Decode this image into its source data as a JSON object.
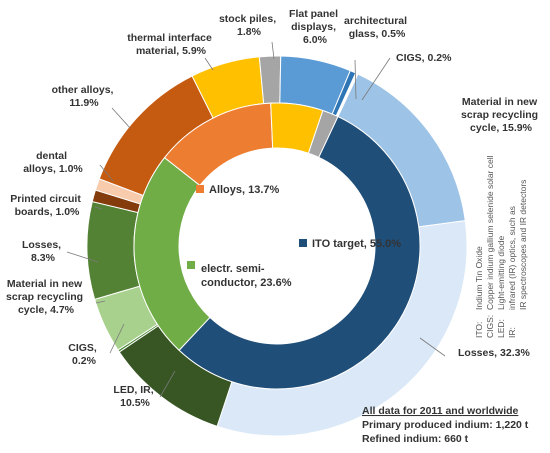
{
  "chart_data": {
    "type": "pie",
    "subtype": "nested-donut",
    "outer_ring": {
      "slices": [
        {
          "label": "Material in new scrap recycling cycle, 15.9%",
          "value": 15.9,
          "color": "#9dc3e6"
        },
        {
          "label": "Losses, 32.3%",
          "value": 32.3,
          "color": "#dae8f7"
        },
        {
          "label": "LED, IR, 10.5%",
          "value": 10.5,
          "color": "#375623"
        },
        {
          "label": "CIGS, 0.2%",
          "value": 0.2,
          "color": "#4e8a3a"
        },
        {
          "label": "Material in new scrap recycling cycle, 4.7%",
          "value": 4.7,
          "color": "#a9d18e"
        },
        {
          "label": "Losses, 8.3%",
          "value": 8.3,
          "color": "#548235"
        },
        {
          "label": "Printed circuit boards, 1.0%",
          "value": 1.0,
          "color": "#843c0c"
        },
        {
          "label": "dental alloys, 1.0%",
          "value": 1.0,
          "color": "#f8cbad"
        },
        {
          "label": "other alloys, 11.9%",
          "value": 11.9,
          "color": "#c55a11"
        },
        {
          "label": "thermal interface material, 5.9%",
          "value": 5.9,
          "color": "#ffc000"
        },
        {
          "label": "stock piles, 1.8%",
          "value": 1.8,
          "color": "#a5a5a5"
        },
        {
          "label": "Flat panel displays, 6.0%",
          "value": 6.0,
          "color": "#5b9bd5"
        },
        {
          "label": "architectural glass, 0.5%",
          "value": 0.5,
          "color": "#2e75b6"
        },
        {
          "label": "CIGS, 0.2%",
          "value": 0.2,
          "color": "#ffffff"
        }
      ]
    },
    "inner_ring": {
      "slices": [
        {
          "label": "ITO target, 55.0%",
          "value": 55.0,
          "color": "#1f4e79"
        },
        {
          "label": "electr. semi-conductor, 23.6%",
          "value": 23.6,
          "color": "#70ad47"
        },
        {
          "label": "Alloys, 13.7%",
          "value": 13.7,
          "color": "#ed7d31"
        },
        {
          "label": "",
          "value": 5.9,
          "color": "#ffc000"
        },
        {
          "label": "",
          "value": 1.8,
          "color": "#a5a5a5"
        }
      ]
    }
  },
  "labels": {
    "flat_panel": [
      "Flat panel",
      "displays,",
      "6.0%"
    ],
    "arch_glass": [
      "architectural",
      "glass, 0.5%"
    ],
    "cigs_top": "CIGS, 0.2%",
    "stock_piles": [
      "stock piles,",
      "1.8%"
    ],
    "thermal": [
      "thermal interface",
      "material, 5.9%"
    ],
    "other_alloys": [
      "other alloys,",
      "11.9%"
    ],
    "dental": [
      "dental",
      "alloys, 1.0%"
    ],
    "pcb": [
      "Printed circuit",
      "boards, 1.0%"
    ],
    "losses_left": [
      "Losses,",
      "8.3%"
    ],
    "scrap_left": [
      "Material in new",
      "scrap recycling",
      "cycle, 4.7%"
    ],
    "cigs_bottom": [
      "CIGS,",
      "0.2%"
    ],
    "led": [
      "LED, IR,",
      "10.5%"
    ],
    "scrap_right": [
      "Material in new",
      "scrap recycling",
      "cycle, 15.9%"
    ],
    "losses_right": "Losses, 32.3%",
    "ito": "ITO target, 55.0%",
    "alloys": "Alloys, 13.7%",
    "semi": [
      "electr. semi-",
      "conductor, 23.6%"
    ]
  },
  "footer": {
    "title": "All data for 2011 and worldwide",
    "primary": "Primary produced indium: 1,220 t",
    "refined": "Refined indium: 660 t"
  },
  "glossary": [
    {
      "abbr": "ITO:",
      "text": "Indium Tin Oxide"
    },
    {
      "abbr": "CIGS:",
      "text": "Copper indium gallium selenide solar cell"
    },
    {
      "abbr": "LED:",
      "text": "Light-emitting diode"
    },
    {
      "abbr": "IR:",
      "text": "infrared (IR) optics, such as"
    },
    {
      "abbr": "",
      "text": "IR spectroscopes and IR detectors"
    }
  ]
}
